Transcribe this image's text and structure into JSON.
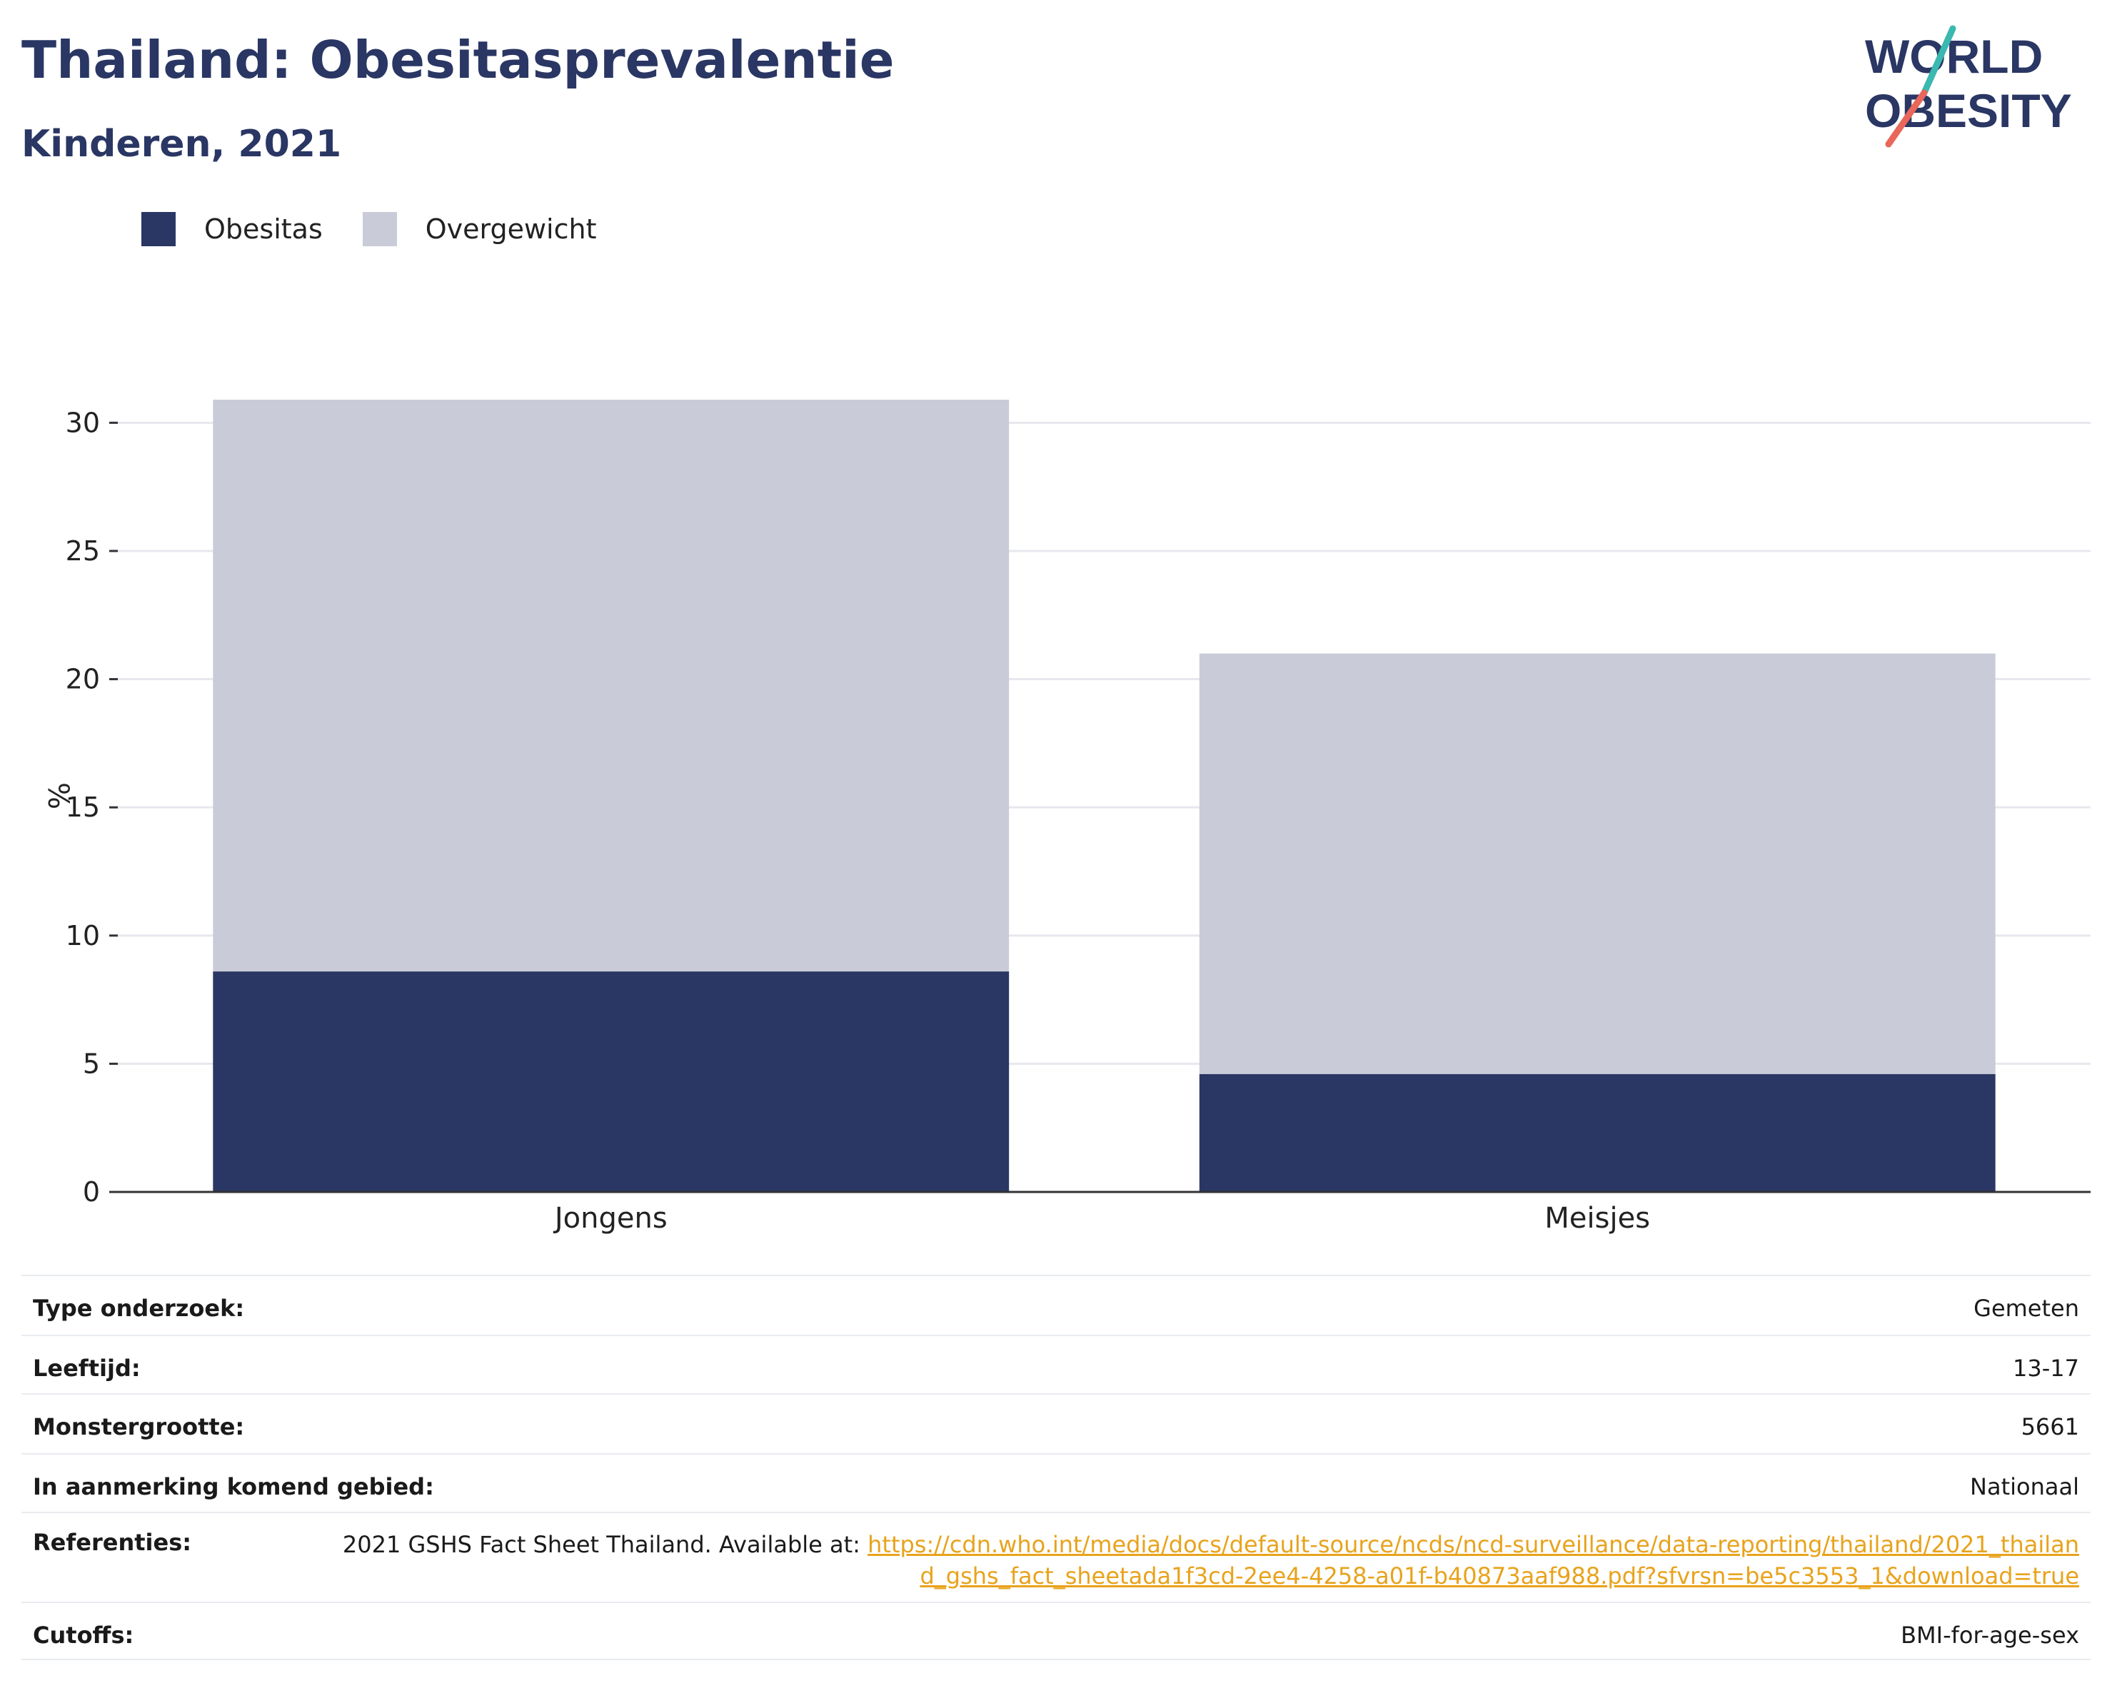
{
  "header": {
    "title": "Thailand: Obesitasprevalentie",
    "subtitle": "Kinderen, 2021"
  },
  "logo": {
    "line1": "WORLD",
    "line2": "OBESITY",
    "text_color": "#2a3663",
    "accent_teal": "#3bb8b0",
    "accent_red": "#e8675a"
  },
  "legend": {
    "items": [
      {
        "label": "Obesitas",
        "color": "#2a3663"
      },
      {
        "label": "Overgewicht",
        "color": "#c9ccd8"
      }
    ]
  },
  "chart_data": {
    "type": "bar",
    "stacked": true,
    "categories": [
      "Jongens",
      "Meisjes"
    ],
    "series": [
      {
        "name": "Obesitas",
        "values": [
          8.6,
          4.6
        ],
        "color": "#2a3663"
      },
      {
        "name": "Overgewicht",
        "values": [
          22.3,
          16.4
        ],
        "color": "#c9ccd8"
      }
    ],
    "title": "Thailand: Obesitasprevalentie",
    "subtitle": "Kinderen, 2021",
    "xlabel": "",
    "ylabel": "%",
    "ylim": [
      0,
      30.9
    ],
    "yticks": [
      0,
      5,
      10,
      15,
      20,
      25,
      30
    ],
    "grid": true,
    "legend_position": "top-left"
  },
  "info": {
    "rows": [
      {
        "label": "Type onderzoek:",
        "value": "Gemeten"
      },
      {
        "label": "Leeftijd:",
        "value": "13-17"
      },
      {
        "label": "Monstergrootte:",
        "value": "5661"
      },
      {
        "label": "In aanmerking komend gebied:",
        "value": "Nationaal"
      }
    ],
    "references": {
      "label": "Referenties:",
      "text": "2021 GSHS Fact Sheet Thailand. Available at: ",
      "link": "https://cdn.who.int/media/docs/default-source/ncds/ncd-surveillance/data-reporting/thailand/2021_thailand_gshs_fact_sheetada1f3cd-2ee4-4258-a01f-b40873aaf988.pdf?sfvrsn=be5c3553_1&download=true"
    },
    "cutoffs": {
      "label": "Cutoffs:",
      "value": "BMI-for-age-sex"
    }
  }
}
